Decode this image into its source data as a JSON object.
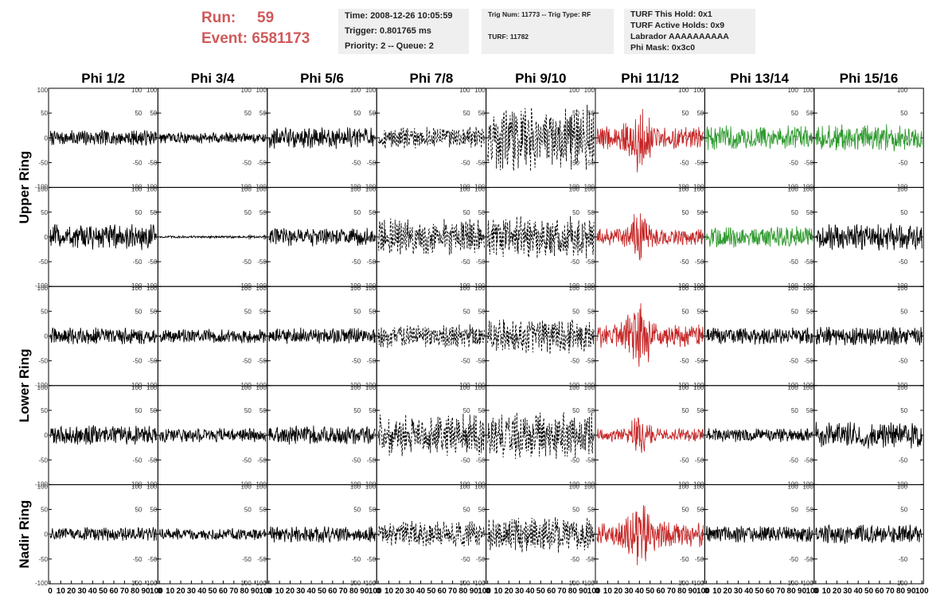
{
  "header": {
    "run_label": "Run:",
    "run_value": "59",
    "event_label": "Event:",
    "event_value": "6581173",
    "time": "Time: 2008-12-26 10:05:59",
    "trigger": "Trigger: 0.801765 ms",
    "priority": "Priority: 2 -- Queue: 2",
    "trig_num": "Trig Num: 11773 -- Trig Type: RF",
    "turf": "TURF: 11782",
    "turf_hold": "TURF This Hold: 0x1",
    "turf_active": "TURF Active Holds: 0x9",
    "labrador": "Labrador AAAAAAAAAA",
    "phi_mask": "Phi Mask: 0x3c0"
  },
  "colors": {
    "header_red": "#d05a5a",
    "box_bg": "#efefef",
    "trace_red": "#c62828",
    "trace_green": "#2e9a2e",
    "trace_black": "#000000"
  },
  "chart_data": {
    "type": "line",
    "columns": [
      "Phi 1/2",
      "Phi 3/4",
      "Phi 5/6",
      "Phi 7/8",
      "Phi 9/10",
      "Phi 11/12",
      "Phi 13/14",
      "Phi 15/16"
    ],
    "ring_labels": [
      "Upper Ring",
      "Lower Ring",
      "Nadir Ring"
    ],
    "row_count": 5,
    "ylim": [
      -100,
      100
    ],
    "xlim": [
      0,
      100
    ],
    "yticks": [
      -100,
      -50,
      0,
      50,
      100
    ],
    "xtick_labels": [
      "0",
      "10",
      "20",
      "30",
      "40",
      "50",
      "60",
      "70",
      "80",
      "90",
      "100"
    ],
    "panels": [
      [
        {
          "style": "black",
          "amp": 13
        },
        {
          "style": "black",
          "amp": 10
        },
        {
          "style": "black",
          "amp": 18
        },
        {
          "style": "dashed",
          "amp": 18
        },
        {
          "style": "dashed",
          "amp": 55
        },
        {
          "style": "red",
          "amp": 28,
          "burst": 40
        },
        {
          "style": "green",
          "amp": 20
        },
        {
          "style": "green",
          "amp": 22
        }
      ],
      [
        {
          "style": "black",
          "amp": 22
        },
        {
          "style": "black",
          "amp": 2
        },
        {
          "style": "black",
          "amp": 16
        },
        {
          "style": "dashed",
          "amp": 30
        },
        {
          "style": "dashed",
          "amp": 35
        },
        {
          "style": "red",
          "amp": 20,
          "burst": 40
        },
        {
          "style": "green",
          "amp": 18
        },
        {
          "style": "black",
          "amp": 22
        }
      ],
      [
        {
          "style": "black",
          "amp": 14
        },
        {
          "style": "black",
          "amp": 12
        },
        {
          "style": "black",
          "amp": 14
        },
        {
          "style": "dashed",
          "amp": 20
        },
        {
          "style": "dashed",
          "amp": 30
        },
        {
          "style": "red",
          "amp": 30,
          "burst": 40
        },
        {
          "style": "black",
          "amp": 14
        },
        {
          "style": "black",
          "amp": 16
        }
      ],
      [
        {
          "style": "black",
          "amp": 16
        },
        {
          "style": "black",
          "amp": 12
        },
        {
          "style": "black",
          "amp": 16
        },
        {
          "style": "dashed",
          "amp": 35
        },
        {
          "style": "dashed",
          "amp": 40
        },
        {
          "style": "red",
          "amp": 15,
          "burst": 40
        },
        {
          "style": "black",
          "amp": 12
        },
        {
          "style": "black",
          "amp": 22
        }
      ],
      [
        {
          "style": "black",
          "amp": 12
        },
        {
          "style": "black",
          "amp": 10
        },
        {
          "style": "black",
          "amp": 14
        },
        {
          "style": "dashed",
          "amp": 22
        },
        {
          "style": "dashed",
          "amp": 30
        },
        {
          "style": "red",
          "amp": 30,
          "burst": 40
        },
        {
          "style": "black",
          "amp": 14
        },
        {
          "style": "black",
          "amp": 16
        }
      ]
    ]
  }
}
